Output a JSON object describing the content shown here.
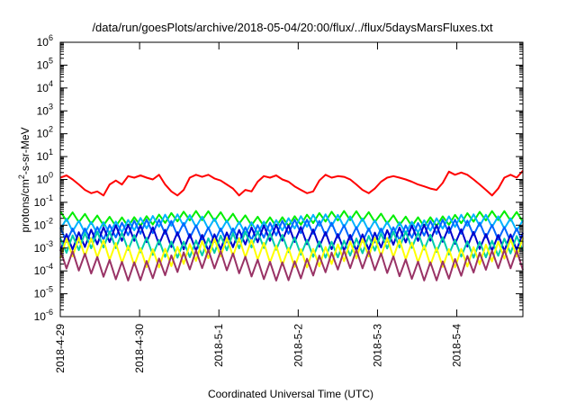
{
  "chart_data": {
    "type": "line",
    "title": "/data/run/goesPlots/archive/2018-05-04/20:00/flux/../flux/5daysMarsFluxes.txt",
    "xlabel": "Coordinated Universal Time (UTC)",
    "ylabel": "protons/cm2-s-sr-MeV",
    "ylabel_parts": {
      "pre": "protons/cm",
      "sup": "2",
      "post": "-s-sr-MeV"
    },
    "yscale": "log",
    "ylim": [
      1e-06,
      1000000.0
    ],
    "y_tick_exponents": [
      -6,
      -5,
      -4,
      -3,
      -2,
      -1,
      0,
      1,
      2,
      3,
      4,
      5,
      6
    ],
    "y_tick_base": "10",
    "x_ticks": [
      "2018-4-29",
      "2018-4-30",
      "2018-5-1",
      "2018-5-2",
      "2018-5-3",
      "2018-5-4"
    ],
    "xlim": [
      "2018-04-29T00:00",
      "2018-05-04T20:00"
    ],
    "grid": false,
    "series": [
      {
        "color": "#ff0000",
        "mean_log10": -0.25,
        "swing_log10": 0.35,
        "tooth_log10": 0.3,
        "seed": 1,
        "values": [
          1.2,
          1.5,
          1.0,
          0.6,
          0.35,
          0.25,
          0.3,
          0.2,
          0.6,
          0.9,
          0.6,
          1.4,
          1.2,
          1.5,
          1.2,
          1.0,
          1.6,
          0.6,
          0.3,
          0.2,
          0.35,
          1.2,
          1.6,
          1.3,
          1.6,
          1.1,
          0.9,
          0.6,
          0.4,
          0.2,
          0.35,
          0.3,
          0.8,
          1.4,
          1.2,
          1.5,
          1.0,
          0.8,
          0.5,
          0.35,
          0.25,
          0.3,
          0.9,
          1.6,
          1.2,
          1.4,
          1.3,
          1.0,
          0.6,
          0.35,
          0.25,
          0.4,
          0.8,
          1.2,
          1.4,
          1.2,
          1.0,
          0.8,
          0.6,
          0.5,
          0.4,
          0.35,
          0.7,
          2.2,
          1.6,
          2.0,
          1.6,
          1.0,
          0.6,
          0.35,
          0.2,
          0.4,
          1.2,
          1.6,
          1.2,
          2.4
        ]
      },
      {
        "color": "#00ee00",
        "mean_log10": -1.72,
        "swing_log10": 0.28,
        "tooth_log10": 0.4,
        "seed": 2
      },
      {
        "color": "#00b3ff",
        "mean_log10": -1.95,
        "swing_log10": 0.35,
        "tooth_log10": 0.5,
        "seed": 3
      },
      {
        "color": "#0066ff",
        "mean_log10": -2.25,
        "swing_log10": 0.4,
        "tooth_log10": 0.6,
        "seed": 4
      },
      {
        "color": "#0000cc",
        "mean_log10": -2.55,
        "swing_log10": 0.45,
        "tooth_log10": 0.7,
        "seed": 5
      },
      {
        "color": "#00ccaa",
        "mean_log10": -2.85,
        "swing_log10": 0.45,
        "tooth_log10": 0.7,
        "seed": 6
      },
      {
        "color": "#ffff00",
        "mean_log10": -3.2,
        "swing_log10": 0.5,
        "tooth_log10": 0.8,
        "seed": 7
      },
      {
        "color": "#993366",
        "mean_log10": -3.75,
        "swing_log10": 0.55,
        "tooth_log10": 0.8,
        "seed": 8
      }
    ]
  }
}
